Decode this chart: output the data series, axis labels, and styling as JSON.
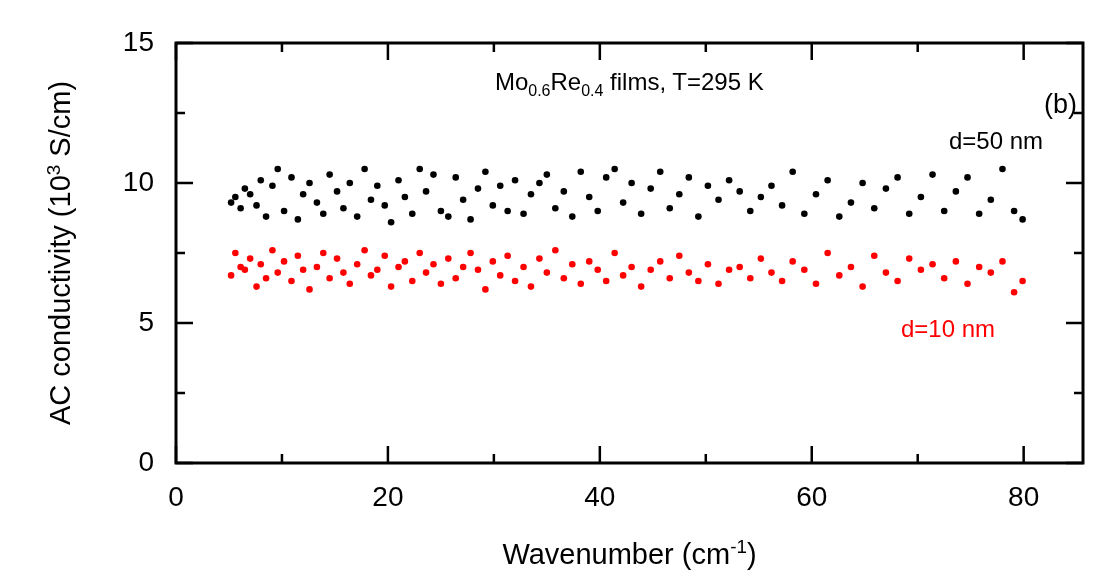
{
  "chart_data": {
    "type": "scatter",
    "xlabel": "Wavenumber (cm$^{-1}$)",
    "ylabel": "AC conductivity (10$^{3}$ S/cm)",
    "annotations": [
      "Mo$_{0.6}$Re$_{0.4}$ films, T=295 K",
      "(b)"
    ],
    "x": [
      5.2,
      5.6,
      6.1,
      6.5,
      7.0,
      7.6,
      8.0,
      8.5,
      9.1,
      9.6,
      10.2,
      10.9,
      11.5,
      12.0,
      12.6,
      13.3,
      13.9,
      14.5,
      15.2,
      15.8,
      16.4,
      17.1,
      17.8,
      18.4,
      19.0,
      19.7,
      20.3,
      21.0,
      21.6,
      22.3,
      23.0,
      23.6,
      24.3,
      25.0,
      25.7,
      26.4,
      27.1,
      27.8,
      28.5,
      29.2,
      29.9,
      30.6,
      31.3,
      32.0,
      32.8,
      33.5,
      34.3,
      35.0,
      35.8,
      36.6,
      37.4,
      38.2,
      39.0,
      39.8,
      40.6,
      41.4,
      42.2,
      43.0,
      43.9,
      44.8,
      45.7,
      46.6,
      47.5,
      48.4,
      49.3,
      50.2,
      51.2,
      52.2,
      53.2,
      54.2,
      55.2,
      56.2,
      57.2,
      58.2,
      59.3,
      60.4,
      61.5,
      62.6,
      63.7,
      64.8,
      65.9,
      67.0,
      68.1,
      69.2,
      70.3,
      71.4,
      72.5,
      73.6,
      74.7,
      75.8,
      76.9,
      78.0,
      79.1,
      79.9
    ],
    "series": [
      {
        "name": "d=50 nm",
        "color": "#000000",
        "values": [
          9.3,
          9.5,
          9.1,
          9.8,
          9.6,
          9.2,
          10.1,
          8.8,
          9.9,
          10.5,
          9.0,
          10.2,
          8.7,
          9.6,
          10.0,
          9.3,
          8.9,
          10.3,
          9.7,
          9.1,
          10.0,
          8.8,
          10.5,
          9.4,
          9.9,
          9.2,
          8.6,
          10.1,
          9.5,
          8.9,
          10.5,
          9.7,
          10.3,
          9.0,
          8.8,
          10.2,
          9.4,
          8.7,
          9.8,
          10.4,
          9.2,
          9.9,
          9.0,
          10.1,
          8.9,
          9.6,
          10.0,
          10.3,
          9.1,
          9.7,
          8.8,
          10.4,
          9.5,
          9.0,
          10.2,
          10.5,
          9.3,
          10.0,
          8.9,
          9.8,
          10.4,
          9.1,
          9.6,
          10.2,
          8.8,
          9.9,
          9.4,
          10.1,
          9.7,
          9.0,
          9.5,
          9.9,
          9.2,
          10.4,
          8.9,
          9.6,
          10.1,
          8.8,
          9.3,
          10.0,
          9.1,
          9.8,
          10.2,
          8.9,
          9.5,
          10.3,
          9.0,
          9.7,
          10.2,
          8.9,
          9.4,
          10.5,
          9.0,
          8.7
        ]
      },
      {
        "name": "d=10 nm",
        "color": "#ff0000",
        "values": [
          6.7,
          7.5,
          7.0,
          6.9,
          7.3,
          6.3,
          7.1,
          6.6,
          7.6,
          6.8,
          7.2,
          6.5,
          7.4,
          6.9,
          6.2,
          7.0,
          7.5,
          6.6,
          7.3,
          6.8,
          6.4,
          7.1,
          7.6,
          6.7,
          6.9,
          7.4,
          6.3,
          7.0,
          7.2,
          6.5,
          7.5,
          6.8,
          7.1,
          6.4,
          7.3,
          6.6,
          7.0,
          7.5,
          6.9,
          6.2,
          7.2,
          6.7,
          7.4,
          6.5,
          7.0,
          6.3,
          7.3,
          6.8,
          7.6,
          6.6,
          7.1,
          6.4,
          7.2,
          6.9,
          6.5,
          7.5,
          6.7,
          7.0,
          6.3,
          6.9,
          7.2,
          6.6,
          7.4,
          6.8,
          6.5,
          7.1,
          6.4,
          6.9,
          7.0,
          6.6,
          7.3,
          6.8,
          6.5,
          7.2,
          6.9,
          6.4,
          7.5,
          6.7,
          7.0,
          6.3,
          7.4,
          6.8,
          6.5,
          7.3,
          6.9,
          7.1,
          6.6,
          7.2,
          6.4,
          7.0,
          6.8,
          7.2,
          6.1,
          6.5
        ]
      }
    ],
    "xlim": [
      0,
      85.6
    ],
    "ylim": [
      0,
      15
    ],
    "xticks": [
      0,
      {
        "value": 10,
        "label": null
      },
      20,
      {
        "value": 30,
        "label": null
      },
      40,
      {
        "value": 50,
        "label": null
      },
      60,
      {
        "value": 70,
        "label": null
      },
      80
    ],
    "yticks": [
      0,
      {
        "value": 2.5,
        "label": null
      },
      5,
      {
        "value": 7.5,
        "label": null
      },
      10,
      {
        "value": 12.5,
        "label": null
      },
      15
    ],
    "marker": "circle",
    "legend": false
  }
}
